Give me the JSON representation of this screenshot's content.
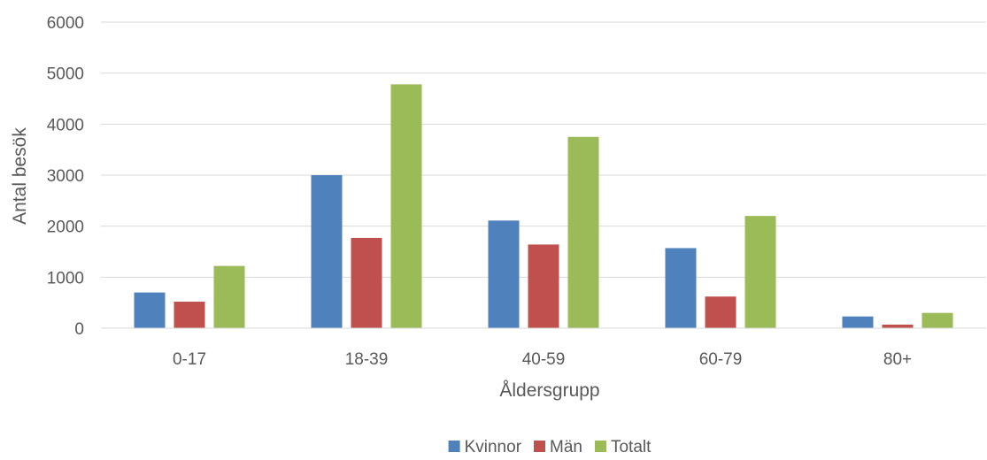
{
  "chart_data": {
    "type": "bar",
    "title": "",
    "xlabel": "Åldersgrupp",
    "ylabel": "Antal besök",
    "categories": [
      "0-17",
      "18-39",
      "40-59",
      "60-79",
      "80+"
    ],
    "series": [
      {
        "name": "Kvinnor",
        "color": "#4f81bd",
        "values": [
          700,
          3000,
          2110,
          1570,
          230
        ]
      },
      {
        "name": "Män",
        "color": "#c0504d",
        "values": [
          520,
          1770,
          1640,
          620,
          70
        ]
      },
      {
        "name": "Totalt",
        "color": "#9bbb59",
        "values": [
          1220,
          4780,
          3750,
          2200,
          300
        ]
      }
    ],
    "ylim": [
      0,
      6000
    ],
    "yticks": [
      0,
      1000,
      2000,
      3000,
      4000,
      5000,
      6000
    ],
    "grid": true,
    "legend_position": "bottom"
  }
}
